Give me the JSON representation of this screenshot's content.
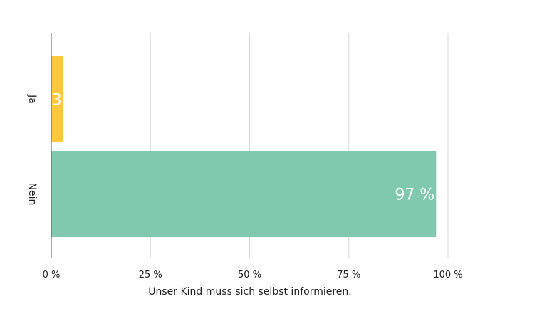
{
  "chart_data": {
    "type": "bar",
    "orientation": "horizontal",
    "categories": [
      "Ja",
      "Nein"
    ],
    "values": [
      3,
      97
    ],
    "value_labels": [
      "3",
      "97 %"
    ],
    "colors": [
      "#ffc83d",
      "#80c9ae"
    ],
    "xlabel": "Unser Kind muss sich selbst informieren.",
    "xlim": [
      0,
      100
    ],
    "xticks": [
      {
        "value": 0,
        "label": "0 %"
      },
      {
        "value": 25,
        "label": "25 %"
      },
      {
        "value": 50,
        "label": "50 %"
      },
      {
        "value": 75,
        "label": "75 %"
      },
      {
        "value": 100,
        "label": "100 %"
      }
    ],
    "grid": true,
    "legend": "none"
  }
}
